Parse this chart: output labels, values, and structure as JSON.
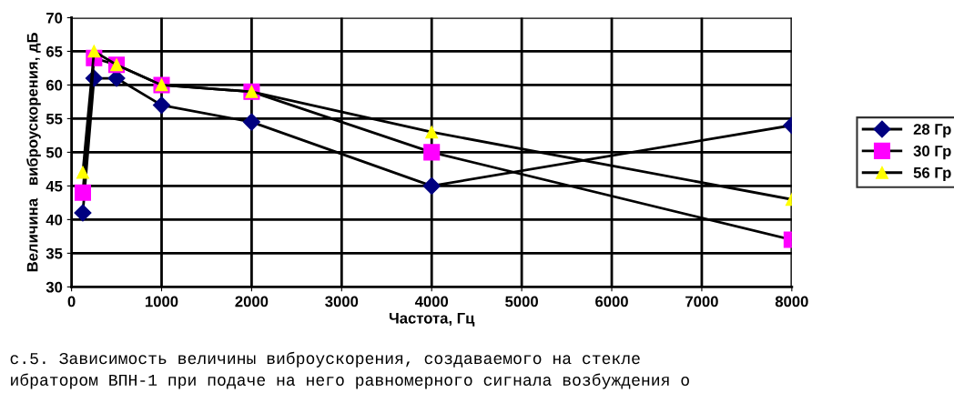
{
  "chart_data": {
    "type": "line",
    "xlabel": "Частота, Гц",
    "ylabel": "Величина   виброускорения, дБ",
    "x": [
      125,
      250,
      500,
      1000,
      2000,
      4000,
      8000
    ],
    "series": [
      {
        "name": "28 Гр",
        "color": "#000080",
        "marker": "diamond",
        "values": [
          41,
          61,
          61,
          57,
          54.5,
          45,
          54
        ]
      },
      {
        "name": "30 Гр",
        "color": "#ff00ff",
        "marker": "square",
        "values": [
          44,
          64,
          63,
          60,
          59,
          50,
          37
        ]
      },
      {
        "name": "56 Гр",
        "color": "#ffff00",
        "marker": "triangle",
        "values": [
          47,
          65,
          63,
          60,
          59,
          53,
          43
        ]
      }
    ],
    "xlim": [
      0,
      8000
    ],
    "xticks": [
      0,
      1000,
      2000,
      3000,
      4000,
      5000,
      6000,
      7000,
      8000
    ],
    "ylim": [
      30,
      70
    ],
    "yticks": [
      30,
      35,
      40,
      45,
      50,
      55,
      60,
      65,
      70
    ],
    "grid": true,
    "legend": "right",
    "line_style": "solid",
    "annotations": [
      "с.5. Зависимость величины виброускорения, создаваемого на стекле",
      "ибратором ВПН-1 при подаче на него равномерного сигнала возбуждения о"
    ]
  }
}
